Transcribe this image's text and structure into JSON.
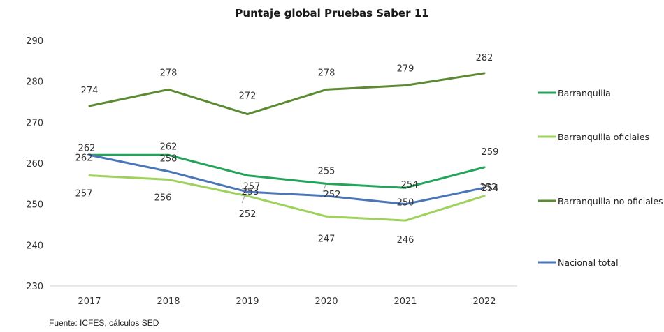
{
  "source": "Fuente: ICFES, cálculos SED",
  "chart_data": {
    "type": "line",
    "title": "Puntaje global Pruebas Saber 11",
    "xlabel": "",
    "ylabel": "",
    "categories": [
      "2017",
      "2018",
      "2019",
      "2020",
      "2021",
      "2022"
    ],
    "ylim": [
      230,
      290
    ],
    "yticks": [
      230,
      240,
      250,
      260,
      270,
      280,
      290
    ],
    "grid": false,
    "legend_position": "right",
    "series": [
      {
        "name": "Barranquilla",
        "color": "#22a45a",
        "values": [
          262,
          262,
          257,
          255,
          254,
          259
        ]
      },
      {
        "name": "Barranquilla oficiales",
        "color": "#9ed25c",
        "values": [
          257,
          256,
          252,
          247,
          246,
          252
        ]
      },
      {
        "name": "Barranquilla no oficiales",
        "color": "#5b8a32",
        "values": [
          274,
          278,
          272,
          278,
          279,
          282
        ]
      },
      {
        "name": "Nacional total",
        "color": "#4a76b8",
        "values": [
          262,
          258,
          253,
          252,
          250,
          254
        ]
      }
    ]
  }
}
